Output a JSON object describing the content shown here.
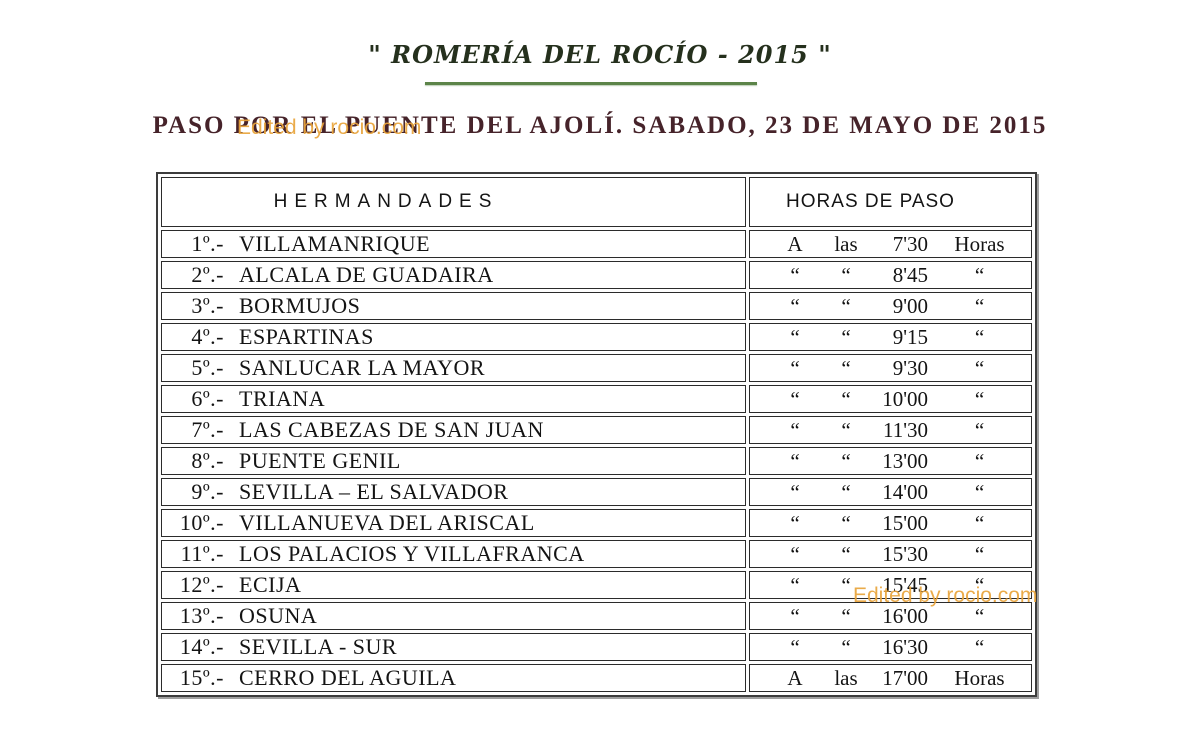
{
  "page": {
    "title": "\" ROMERÍA DEL ROCÍO - 2015 \"",
    "subtitle": "PASO POR EL PUENTE DEL AJOLÍ.  SABADO, 23 DE MAYO DE 2015",
    "watermark": "Edited by rocio.com"
  },
  "table": {
    "headers": {
      "hermandades": "HERMANDADES",
      "horas": "HORAS DE PASO"
    },
    "rows": [
      {
        "num": "1º.-",
        "name": "VILLAMANRIQUE",
        "h1": "A",
        "h2": "las",
        "time": "7'30",
        "h4": "Horas"
      },
      {
        "num": "2º.-",
        "name": "ALCALA DE GUADAIRA",
        "h1": "“",
        "h2": "“",
        "time": "8'45",
        "h4": "“"
      },
      {
        "num": "3º.-",
        "name": "BORMUJOS",
        "h1": "“",
        "h2": "“",
        "time": "9'00",
        "h4": "“"
      },
      {
        "num": "4º.-",
        "name": "ESPARTINAS",
        "h1": "“",
        "h2": "“",
        "time": "9'15",
        "h4": "“"
      },
      {
        "num": "5º.-",
        "name": "SANLUCAR LA MAYOR",
        "h1": "“",
        "h2": "“",
        "time": "9'30",
        "h4": "“"
      },
      {
        "num": "6º.-",
        "name": "TRIANA",
        "h1": "“",
        "h2": "“",
        "time": "10'00",
        "h4": "“"
      },
      {
        "num": "7º.-",
        "name": "LAS CABEZAS DE SAN JUAN",
        "h1": "“",
        "h2": "“",
        "time": "11'30",
        "h4": "“"
      },
      {
        "num": "8º.-",
        "name": "PUENTE GENIL",
        "h1": "“",
        "h2": "“",
        "time": "13'00",
        "h4": "“"
      },
      {
        "num": "9º.-",
        "name": "SEVILLA – EL SALVADOR",
        "h1": "“",
        "h2": "“",
        "time": "14'00",
        "h4": "“"
      },
      {
        "num": "10º.-",
        "name": "VILLANUEVA DEL ARISCAL",
        "h1": "“",
        "h2": "“",
        "time": "15'00",
        "h4": "“"
      },
      {
        "num": "11º.-",
        "name": "LOS PALACIOS Y VILLAFRANCA",
        "h1": "“",
        "h2": "“",
        "time": "15'30",
        "h4": "“"
      },
      {
        "num": "12º.-",
        "name": "ECIJA",
        "h1": "“",
        "h2": "“",
        "time": "15'45",
        "h4": "“"
      },
      {
        "num": "13º.-",
        "name": "OSUNA",
        "h1": "“",
        "h2": "“",
        "time": "16'00",
        "h4": "“"
      },
      {
        "num": "14º.-",
        "name": "SEVILLA - SUR",
        "h1": "“",
        "h2": "“",
        "time": "16'30",
        "h4": "“"
      },
      {
        "num": "15º.-",
        "name": "CERRO DEL AGUILA",
        "h1": "A",
        "h2": "las",
        "time": "17'00",
        "h4": "Horas"
      }
    ]
  },
  "colors": {
    "title_green": "#25301d",
    "underline_green": "#5c8449",
    "subtitle_maroon": "#46232a",
    "watermark_orange": "#e9a43b",
    "border_dark": "#2b2b2b",
    "outer_border": "#3c3c3c",
    "shadow_gray": "#9e9e9e",
    "text_black": "#141414"
  }
}
